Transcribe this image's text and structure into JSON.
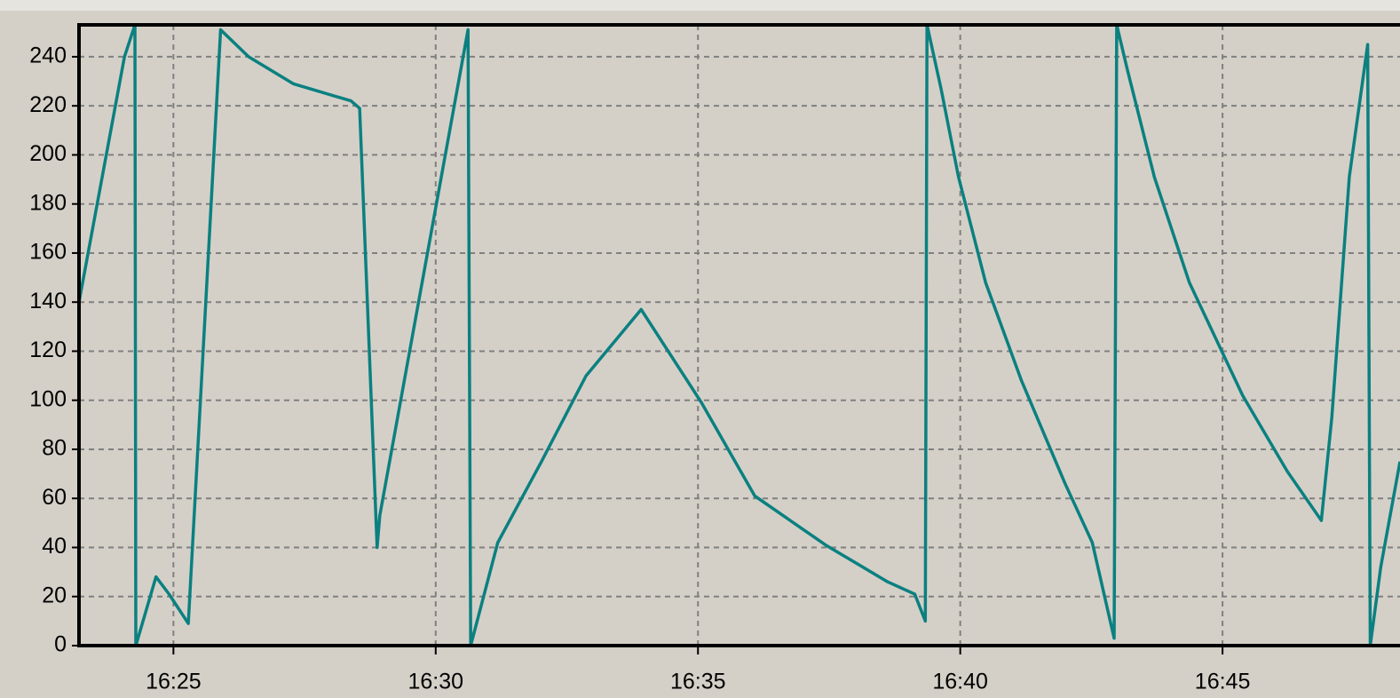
{
  "chart_data": {
    "type": "line",
    "x": [
      "16:23:12",
      "16:24:04",
      "16:24:16",
      "16:24:17",
      "16:24:40",
      "16:24:55",
      "16:25:17",
      "16:25:54",
      "16:26:26",
      "16:27:17",
      "16:28:23",
      "16:28:33",
      "16:28:53",
      "16:28:56",
      "16:30:37",
      "16:30:40",
      "16:31:11",
      "16:32:01",
      "16:32:52",
      "16:33:55",
      "16:35:04",
      "16:36:05",
      "16:37:26",
      "16:38:37",
      "16:39:08",
      "16:39:20",
      "16:39:22",
      "16:39:38",
      "16:39:58",
      "16:40:29",
      "16:41:10",
      "16:42:00",
      "16:42:31",
      "16:42:56",
      "16:42:59",
      "16:43:11",
      "16:43:42",
      "16:44:22",
      "16:45:23",
      "16:46:14",
      "16:46:53",
      "16:47:05",
      "16:47:25",
      "16:47:46",
      "16:47:49",
      "16:48:01",
      "16:48:23"
    ],
    "series": [
      {
        "color": "#0b8080",
        "values": [
          140,
          240,
          253,
          0,
          28,
          21,
          9,
          251,
          240,
          229,
          222,
          219,
          40,
          53,
          251,
          0,
          42,
          75,
          110,
          137,
          99,
          61,
          41,
          26,
          21,
          10,
          253,
          227,
          191,
          148,
          108,
          66,
          42,
          3,
          253,
          235,
          191,
          148,
          102,
          71,
          51,
          93,
          191,
          245,
          0,
          32,
          75
        ]
      }
    ],
    "xlim": [
      "16:23:12",
      "16:48:23"
    ],
    "ylim": [
      0,
      253
    ],
    "xticks": [
      "16:25",
      "16:30",
      "16:35",
      "16:40",
      "16:45"
    ],
    "yticks": [
      0,
      20,
      40,
      60,
      80,
      100,
      120,
      140,
      160,
      180,
      200,
      220,
      240
    ],
    "grid": true
  }
}
